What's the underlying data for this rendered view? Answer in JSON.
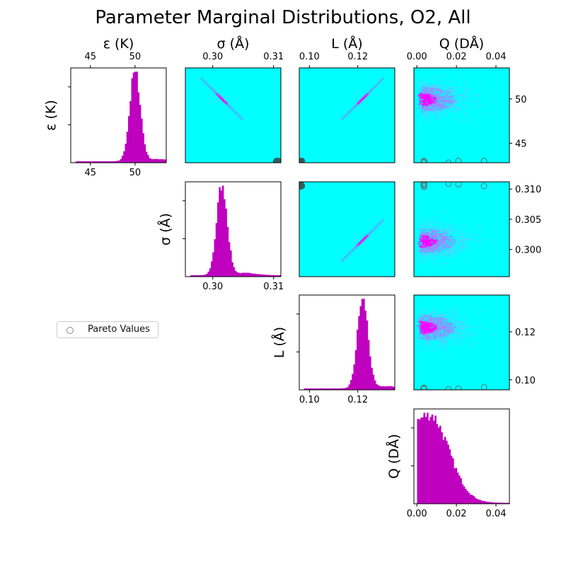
{
  "title": "Parameter Marginal Distributions, O2, All",
  "legend": {
    "label": "Pareto Values",
    "position": "left-middle"
  },
  "colors": {
    "histogram": "#bf00bf",
    "density_background": "#00ffff",
    "density_high": "#ff00ff",
    "pareto_marker": "#2f5f5f"
  },
  "chart_data": {
    "type": "corner-plot",
    "parameters": [
      {
        "key": "eps",
        "label": "ε (K)",
        "range": [
          42.8,
          53.5
        ],
        "ticks": [
          {
            "v": 45,
            "label": "45"
          },
          {
            "v": 50,
            "label": "50"
          }
        ],
        "row_ticks": [
          {
            "v": 45,
            "label": "45"
          },
          {
            "v": 50,
            "label": "50"
          }
        ],
        "peak": 50.0
      },
      {
        "key": "sigma",
        "label": "σ (Å)",
        "range": [
          0.2955,
          0.3112
        ],
        "ticks": [
          {
            "v": 0.3,
            "label": "0.30"
          },
          {
            "v": 0.31,
            "label": "0.31"
          }
        ],
        "row_ticks": [
          {
            "v": 0.3,
            "label": "0.300"
          },
          {
            "v": 0.305,
            "label": "0.305"
          },
          {
            "v": 0.31,
            "label": "0.310"
          }
        ],
        "peak": 0.3015
      },
      {
        "key": "L",
        "label": "L (Å)",
        "range": [
          0.0958,
          0.1353
        ],
        "ticks": [
          {
            "v": 0.1,
            "label": "0.10"
          },
          {
            "v": 0.12,
            "label": "0.12"
          }
        ],
        "row_ticks": [
          {
            "v": 0.1,
            "label": "0.10"
          },
          {
            "v": 0.12,
            "label": "0.12"
          }
        ],
        "peak": 0.122
      },
      {
        "key": "Q",
        "label": "Q (DÅ)",
        "range": [
          -0.0015,
          0.0468
        ],
        "ticks": [
          {
            "v": 0.0,
            "label": "0.00"
          },
          {
            "v": 0.02,
            "label": "0.02"
          },
          {
            "v": 0.04,
            "label": "0.04"
          }
        ],
        "row_ticks": [],
        "peak": 0.006
      }
    ],
    "diagonal": "histogram",
    "off_diagonal": "2d-density",
    "pareto_points": [
      {
        "eps": 42.9,
        "sigma": 0.3108,
        "L": 0.0965,
        "Q": 0.0035
      },
      {
        "eps": 42.9,
        "sigma": 0.3104,
        "L": 0.0962,
        "Q": 0.0036
      },
      {
        "eps": 42.9,
        "sigma": 0.3109,
        "L": 0.0963,
        "Q": 0.0037
      },
      {
        "eps": 42.8,
        "sigma": 0.3108,
        "L": 0.0962,
        "Q": 0.0034
      },
      {
        "eps": 43.0,
        "sigma": 0.3106,
        "L": 0.0966,
        "Q": 0.0036
      },
      {
        "eps": 43.0,
        "sigma": 0.3108,
        "L": 0.0963,
        "Q": 0.021
      },
      {
        "eps": 43.0,
        "sigma": 0.3105,
        "L": 0.0969,
        "Q": 0.034
      },
      {
        "eps": 42.8,
        "sigma": 0.3109,
        "L": 0.096,
        "Q": 0.016
      }
    ]
  }
}
